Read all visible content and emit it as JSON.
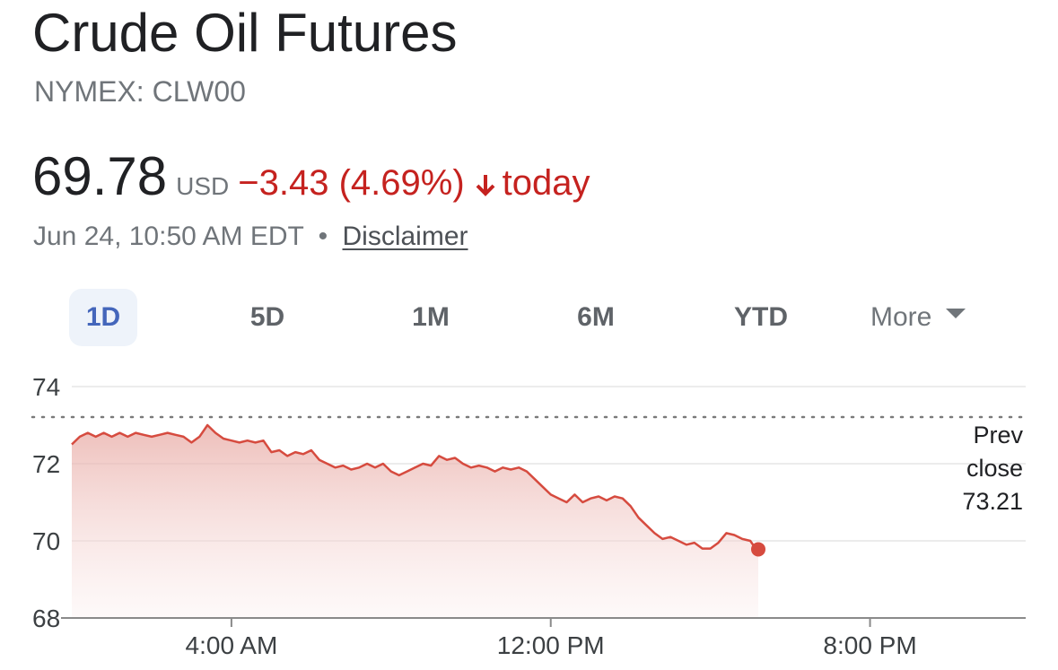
{
  "header": {
    "title": "Crude Oil Futures",
    "ticker": "NYMEX: CLW00"
  },
  "quote": {
    "price": "69.78",
    "currency": "USD",
    "change": "−3.43 (4.69%)",
    "direction_icon": "arrow-down-icon",
    "period": "today",
    "timestamp": "Jun 24, 10:50 AM EDT",
    "separator": "•",
    "disclaimer": "Disclaimer"
  },
  "colors": {
    "negative": "#c5221f",
    "line": "#d64b3f",
    "accent_tab": "#4466bb"
  },
  "tabs": [
    {
      "label": "1D",
      "active": true
    },
    {
      "label": "5D",
      "active": false
    },
    {
      "label": "1M",
      "active": false
    },
    {
      "label": "6M",
      "active": false
    },
    {
      "label": "YTD",
      "active": false
    },
    {
      "label": "More",
      "active": false
    }
  ],
  "chart_data": {
    "type": "area",
    "ylim": [
      68,
      74
    ],
    "yticks": [
      68,
      70,
      72,
      74
    ],
    "xlim_hours": [
      0,
      23.9
    ],
    "xticks": [
      {
        "hour": 4,
        "label": "4:00 AM"
      },
      {
        "hour": 12,
        "label": "12:00 PM"
      },
      {
        "hour": 20,
        "label": "8:00 PM"
      }
    ],
    "prev_close": {
      "value": 73.21,
      "label_lines": [
        "Prev",
        "close",
        "73.21"
      ]
    },
    "series": [
      {
        "values": [
          [
            0.0,
            72.5
          ],
          [
            0.2,
            72.7
          ],
          [
            0.4,
            72.8
          ],
          [
            0.6,
            72.7
          ],
          [
            0.8,
            72.8
          ],
          [
            1.0,
            72.7
          ],
          [
            1.2,
            72.8
          ],
          [
            1.4,
            72.7
          ],
          [
            1.6,
            72.8
          ],
          [
            1.8,
            72.75
          ],
          [
            2.0,
            72.7
          ],
          [
            2.2,
            72.75
          ],
          [
            2.4,
            72.8
          ],
          [
            2.6,
            72.75
          ],
          [
            2.8,
            72.7
          ],
          [
            3.0,
            72.55
          ],
          [
            3.2,
            72.7
          ],
          [
            3.4,
            73.0
          ],
          [
            3.6,
            72.8
          ],
          [
            3.8,
            72.65
          ],
          [
            4.0,
            72.6
          ],
          [
            4.2,
            72.55
          ],
          [
            4.4,
            72.6
          ],
          [
            4.6,
            72.55
          ],
          [
            4.8,
            72.6
          ],
          [
            5.0,
            72.3
          ],
          [
            5.2,
            72.35
          ],
          [
            5.4,
            72.2
          ],
          [
            5.6,
            72.3
          ],
          [
            5.8,
            72.25
          ],
          [
            6.0,
            72.35
          ],
          [
            6.2,
            72.1
          ],
          [
            6.4,
            72.0
          ],
          [
            6.6,
            71.9
          ],
          [
            6.8,
            71.95
          ],
          [
            7.0,
            71.85
          ],
          [
            7.2,
            71.9
          ],
          [
            7.4,
            72.0
          ],
          [
            7.6,
            71.9
          ],
          [
            7.8,
            72.0
          ],
          [
            8.0,
            71.8
          ],
          [
            8.2,
            71.7
          ],
          [
            8.4,
            71.8
          ],
          [
            8.6,
            71.9
          ],
          [
            8.8,
            72.0
          ],
          [
            9.0,
            71.95
          ],
          [
            9.2,
            72.2
          ],
          [
            9.4,
            72.1
          ],
          [
            9.6,
            72.15
          ],
          [
            9.8,
            72.0
          ],
          [
            10.0,
            71.9
          ],
          [
            10.2,
            71.95
          ],
          [
            10.4,
            71.9
          ],
          [
            10.6,
            71.8
          ],
          [
            10.8,
            71.9
          ],
          [
            11.0,
            71.85
          ],
          [
            11.2,
            71.9
          ],
          [
            11.4,
            71.8
          ],
          [
            11.6,
            71.6
          ],
          [
            11.8,
            71.4
          ],
          [
            12.0,
            71.2
          ],
          [
            12.2,
            71.1
          ],
          [
            12.4,
            71.0
          ],
          [
            12.6,
            71.2
          ],
          [
            12.8,
            71.0
          ],
          [
            13.0,
            71.1
          ],
          [
            13.2,
            71.15
          ],
          [
            13.4,
            71.05
          ],
          [
            13.6,
            71.15
          ],
          [
            13.8,
            71.1
          ],
          [
            14.0,
            70.9
          ],
          [
            14.2,
            70.6
          ],
          [
            14.4,
            70.4
          ],
          [
            14.6,
            70.2
          ],
          [
            14.8,
            70.05
          ],
          [
            15.0,
            70.1
          ],
          [
            15.2,
            70.0
          ],
          [
            15.4,
            69.9
          ],
          [
            15.6,
            69.95
          ],
          [
            15.8,
            69.8
          ],
          [
            16.0,
            69.8
          ],
          [
            16.2,
            69.95
          ],
          [
            16.4,
            70.2
          ],
          [
            16.6,
            70.15
          ],
          [
            16.8,
            70.05
          ],
          [
            17.0,
            70.0
          ],
          [
            17.1,
            69.85
          ],
          [
            17.2,
            69.78
          ]
        ]
      }
    ]
  }
}
